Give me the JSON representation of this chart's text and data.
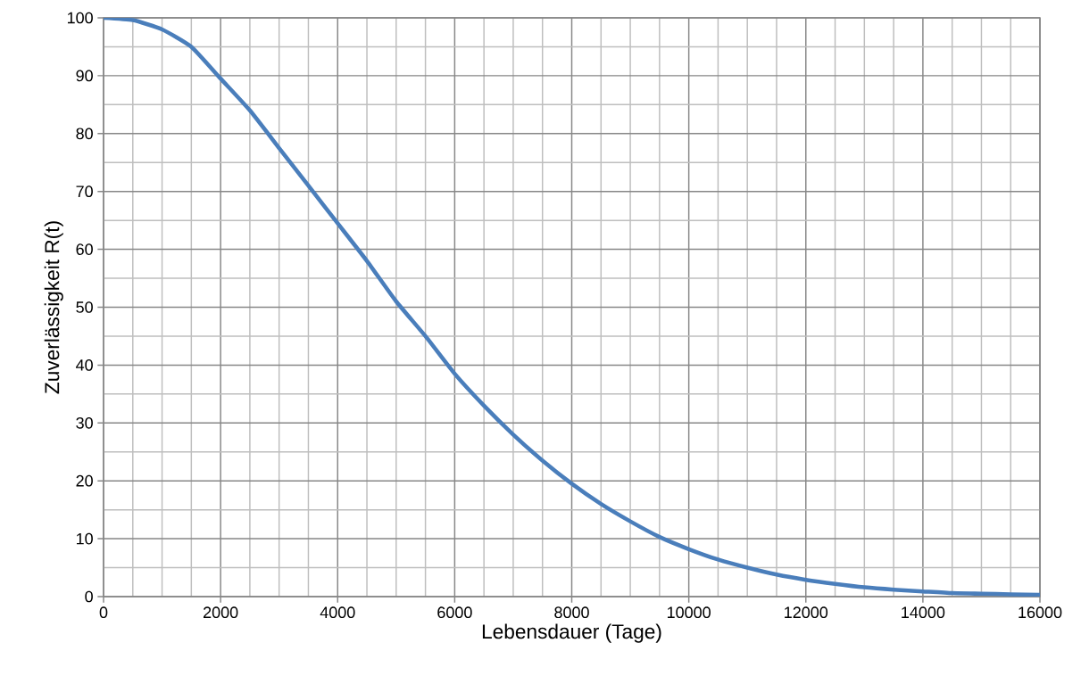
{
  "chart_data": {
    "type": "line",
    "xlabel": "Lebensdauer (Tage)",
    "ylabel": "Zuverlässigkeit R(t)",
    "x": [
      0,
      500,
      1000,
      1500,
      2000,
      2500,
      3000,
      3500,
      4000,
      4500,
      5000,
      5500,
      6000,
      6500,
      7000,
      7500,
      8000,
      8500,
      9000,
      9500,
      10000,
      10500,
      11000,
      11500,
      12000,
      12500,
      13000,
      13500,
      14000,
      14500,
      15000,
      15500,
      16000
    ],
    "series": [
      {
        "color": "#4a7ebb",
        "values": [
          100,
          99.6,
          98,
          95,
          89.5,
          84,
          77.5,
          71,
          64.5,
          58,
          51,
          45,
          38.5,
          33,
          28,
          23.5,
          19.5,
          16,
          13,
          10.3,
          8.2,
          6.4,
          5,
          3.8,
          2.9,
          2.2,
          1.6,
          1.2,
          0.9,
          0.6,
          0.5,
          0.4,
          0.3
        ]
      }
    ],
    "xlim": [
      0,
      16000
    ],
    "xticks": [
      0,
      2000,
      4000,
      6000,
      8000,
      10000,
      12000,
      14000,
      16000
    ],
    "ylim": [
      0,
      100
    ],
    "yticks": [
      0,
      10,
      20,
      30,
      40,
      50,
      60,
      70,
      80,
      90,
      100
    ],
    "grid": true,
    "marker": "none",
    "line_style": "solid"
  }
}
